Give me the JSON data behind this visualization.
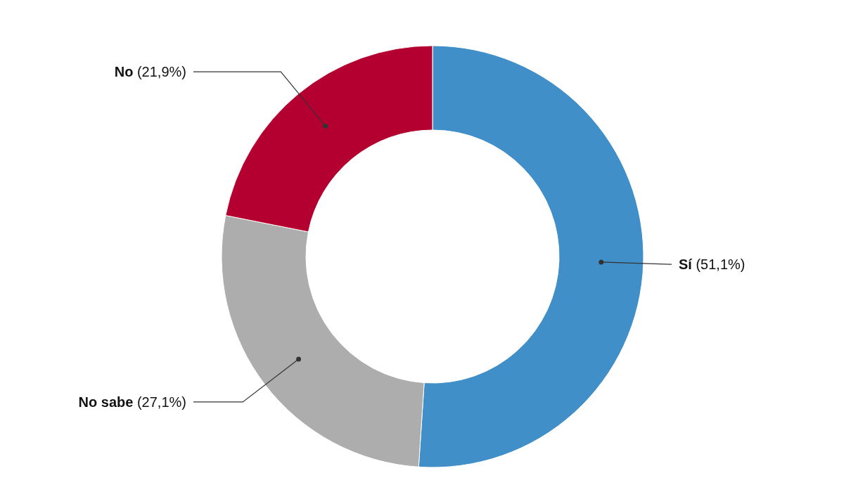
{
  "chart_data": {
    "type": "donut",
    "categories": [
      "Sí",
      "No sabe",
      "No"
    ],
    "values": [
      51.1,
      27.1,
      21.9
    ],
    "colors": [
      "#418fc9",
      "#adadad",
      "#b40030"
    ],
    "value_labels": [
      "(51,1%)",
      "(27,1%)",
      "(21,9%)"
    ],
    "legend": false
  }
}
